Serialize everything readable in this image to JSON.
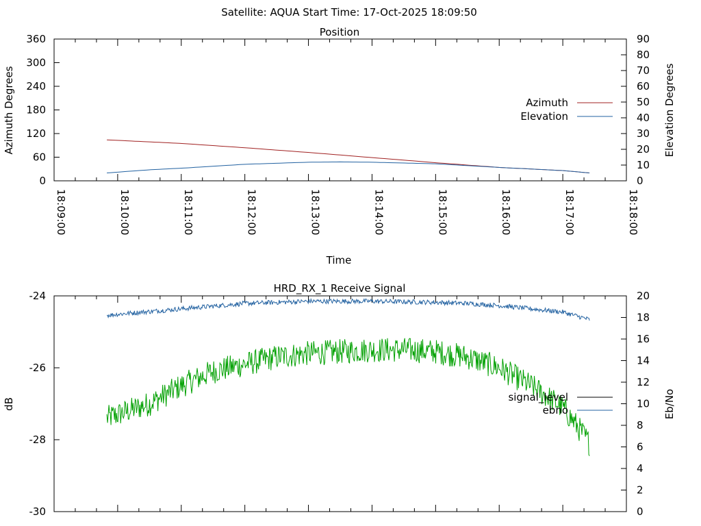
{
  "header": {
    "text": "Satellite: AQUA    Start Time: 17-Oct-2025 18:09:50"
  },
  "colors": {
    "azimuth": "#a02020",
    "elevation": "#2060a0",
    "signal_level": "#000000",
    "signal_trace": "#00a000",
    "ebno": "#2060a0"
  },
  "chart_data": [
    {
      "type": "line",
      "title": "Position",
      "xlabel": "Time",
      "ylabel": "Azimuth Degrees",
      "y2label": "Elevation Degrees",
      "xlim": [
        "18:09:00",
        "18:18:00"
      ],
      "x_ticks": [
        "18:09:00",
        "18:10:00",
        "18:11:00",
        "18:12:00",
        "18:13:00",
        "18:14:00",
        "18:15:00",
        "18:16:00",
        "18:17:00",
        "18:18:00"
      ],
      "ylim": [
        0,
        360
      ],
      "y_ticks": [
        "0",
        "60",
        "120",
        "180",
        "240",
        "300",
        "360"
      ],
      "y2lim": [
        0,
        90
      ],
      "y2_ticks": [
        "0",
        "10",
        "20",
        "30",
        "40",
        "50",
        "60",
        "70",
        "80",
        "90"
      ],
      "legend": "right",
      "series": [
        {
          "name": "Azimuth",
          "axis": "y",
          "x_minutes": [
            0.83,
            2.0,
            3.0,
            4.0,
            5.0,
            6.0,
            7.0,
            8.0,
            8.42
          ],
          "values": [
            104,
            95,
            84,
            72,
            59,
            46,
            34,
            26,
            20
          ]
        },
        {
          "name": "Elevation",
          "axis": "y2",
          "x_minutes": [
            0.83,
            1.5,
            2.0,
            3.0,
            4.0,
            4.5,
            5.0,
            6.0,
            7.0,
            8.0,
            8.42
          ],
          "values": [
            5,
            7,
            8,
            10.5,
            11.8,
            12.0,
            11.8,
            10.8,
            8.5,
            6.5,
            5
          ]
        }
      ]
    },
    {
      "type": "line",
      "title": "HRD_RX_1 Receive Signal",
      "ylabel": "dB",
      "y2label": "Eb/No",
      "ylim": [
        -30,
        -24
      ],
      "y_ticks": [
        "-24",
        "-26",
        "-28",
        "-30"
      ],
      "y2lim": [
        0,
        20
      ],
      "y2_ticks": [
        "0",
        "2",
        "4",
        "6",
        "8",
        "10",
        "12",
        "14",
        "16",
        "18",
        "20"
      ],
      "legend": "right",
      "series": [
        {
          "name": "signal_level",
          "axis": "y",
          "x_minutes": [
            0.83,
            1.0,
            1.5,
            2.0,
            2.5,
            3.0,
            3.5,
            4.0,
            4.5,
            5.0,
            5.5,
            6.0,
            6.5,
            7.0,
            7.5,
            8.0,
            8.3,
            8.42
          ],
          "values": [
            -27.4,
            -27.3,
            -27.0,
            -26.5,
            -26.1,
            -25.9,
            -25.7,
            -25.6,
            -25.55,
            -25.5,
            -25.5,
            -25.55,
            -25.7,
            -26.0,
            -26.5,
            -27.1,
            -27.8,
            -28.1
          ]
        },
        {
          "name": "ebno",
          "axis": "y2",
          "x_minutes": [
            0.83,
            1.0,
            2.0,
            3.0,
            4.0,
            5.0,
            6.0,
            6.5,
            7.0,
            7.5,
            8.0,
            8.42
          ],
          "values": [
            18.2,
            18.3,
            18.8,
            19.3,
            19.5,
            19.5,
            19.4,
            19.3,
            19.1,
            18.8,
            18.5,
            17.8
          ]
        }
      ]
    }
  ]
}
